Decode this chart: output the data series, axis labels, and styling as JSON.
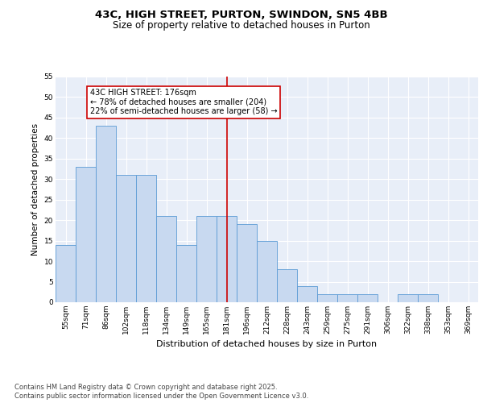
{
  "title": "43C, HIGH STREET, PURTON, SWINDON, SN5 4BB",
  "subtitle": "Size of property relative to detached houses in Purton",
  "xlabel": "Distribution of detached houses by size in Purton",
  "ylabel": "Number of detached properties",
  "categories": [
    "55sqm",
    "71sqm",
    "86sqm",
    "102sqm",
    "118sqm",
    "134sqm",
    "149sqm",
    "165sqm",
    "181sqm",
    "196sqm",
    "212sqm",
    "228sqm",
    "243sqm",
    "259sqm",
    "275sqm",
    "291sqm",
    "306sqm",
    "322sqm",
    "338sqm",
    "353sqm",
    "369sqm"
  ],
  "values": [
    14,
    33,
    43,
    31,
    31,
    21,
    14,
    21,
    21,
    19,
    15,
    8,
    4,
    2,
    2,
    2,
    0,
    2,
    2,
    0,
    0
  ],
  "bar_color": "#c8d9f0",
  "bar_edge_color": "#5b9bd5",
  "vline_x_index": 8,
  "vline_color": "#cc0000",
  "annotation_text": "43C HIGH STREET: 176sqm\n← 78% of detached houses are smaller (204)\n22% of semi-detached houses are larger (58) →",
  "annotation_box_edge_color": "#cc0000",
  "ylim": [
    0,
    55
  ],
  "yticks": [
    0,
    5,
    10,
    15,
    20,
    25,
    30,
    35,
    40,
    45,
    50,
    55
  ],
  "background_color": "#e8eef8",
  "grid_color": "#ffffff",
  "footer_line1": "Contains HM Land Registry data © Crown copyright and database right 2025.",
  "footer_line2": "Contains public sector information licensed under the Open Government Licence v3.0.",
  "title_fontsize": 9.5,
  "subtitle_fontsize": 8.5,
  "xlabel_fontsize": 8,
  "ylabel_fontsize": 7.5,
  "tick_fontsize": 6.5,
  "annotation_fontsize": 7,
  "footer_fontsize": 6
}
